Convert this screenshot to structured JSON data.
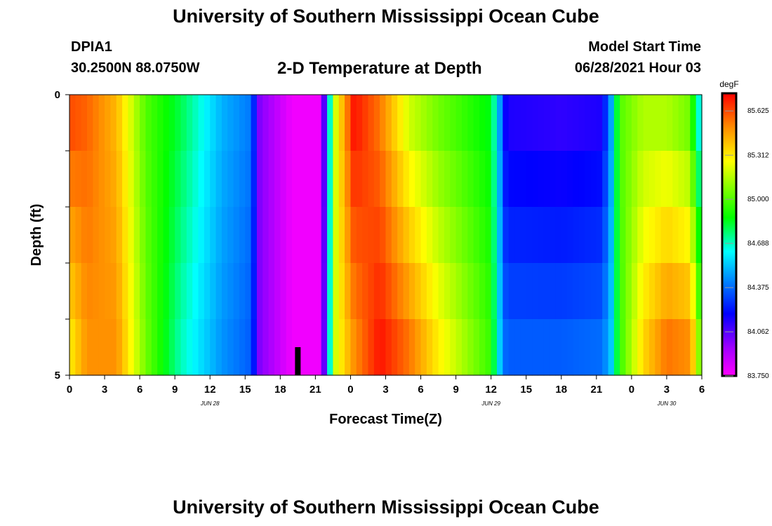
{
  "header": {
    "title": "University of Southern Mississippi Ocean Cube",
    "station_id": "DPIA1",
    "station_coords": "30.2500N  88.0750W",
    "chart_title": "2-D Temperature at Depth",
    "start_label": "Model Start Time",
    "start_value": "06/28/2021 Hour 03"
  },
  "footer": {
    "title": "University of Southern Mississippi Ocean Cube"
  },
  "chart_data": {
    "type": "heatmap",
    "title": "2-D Temperature at Depth",
    "xlabel": "Forecast Time(Z)",
    "ylabel": "Depth (ft)",
    "x_hours": [
      0,
      54
    ],
    "xtick_hours": [
      0,
      3,
      6,
      9,
      12,
      15,
      18,
      21,
      24,
      27,
      30,
      33,
      36,
      39,
      42,
      45,
      48,
      51,
      54
    ],
    "xtick_labels": [
      "0",
      "3",
      "6",
      "9",
      "12",
      "15",
      "18",
      "21",
      "0",
      "3",
      "6",
      "9",
      "12",
      "15",
      "18",
      "21",
      "0",
      "3",
      "6"
    ],
    "date_labels": [
      {
        "hour": 12,
        "label": "JUN 28"
      },
      {
        "hour": 36,
        "label": "JUN 29"
      },
      {
        "hour": 51,
        "label": "JUN 30"
      }
    ],
    "depth_ft": [
      0,
      5
    ],
    "ytick_labels": [
      "0",
      "5"
    ],
    "depth_layers": 5,
    "colorbar": {
      "unit": "degF",
      "min": 83.75,
      "max": 85.75,
      "tick_values": [
        85.625,
        85.312,
        85.0,
        84.688,
        84.375,
        84.062,
        83.75
      ],
      "tick_labels": [
        "85.625",
        "85.312",
        "85.000",
        "84.688",
        "84.375",
        "84.062",
        "83.750"
      ]
    },
    "time_keypoints": {
      "hours": [
        0,
        1.5,
        4,
        6.5,
        9.5,
        13,
        15.5,
        16.2,
        19,
        21.5,
        22.0,
        22.3,
        22.7,
        23.4,
        24.3,
        26.5,
        29,
        31.5,
        36,
        36.6,
        37.3,
        42,
        45.5,
        46.3,
        47,
        49,
        51,
        53,
        53.6,
        54
      ],
      "surface_degF": [
        85.62,
        85.58,
        85.42,
        85.0,
        84.8,
        84.5,
        84.4,
        84.0,
        83.78,
        83.78,
        84.35,
        84.75,
        85.2,
        85.45,
        85.72,
        85.55,
        85.2,
        85.05,
        84.85,
        84.55,
        84.15,
        84.12,
        84.15,
        84.5,
        85.0,
        85.15,
        85.15,
        85.05,
        84.7,
        84.6
      ],
      "bottom_degF": [
        85.3,
        85.5,
        85.5,
        85.05,
        84.7,
        84.45,
        84.35,
        84.0,
        83.78,
        83.78,
        84.3,
        84.75,
        85.2,
        85.35,
        85.5,
        85.72,
        85.55,
        85.3,
        84.95,
        84.6,
        84.35,
        84.35,
        84.38,
        84.55,
        84.95,
        85.35,
        85.55,
        85.5,
        85.2,
        84.9
      ]
    },
    "marker": {
      "hour": 19.5,
      "depth_from_ft": 4.5,
      "depth_to_ft": 5
    }
  }
}
